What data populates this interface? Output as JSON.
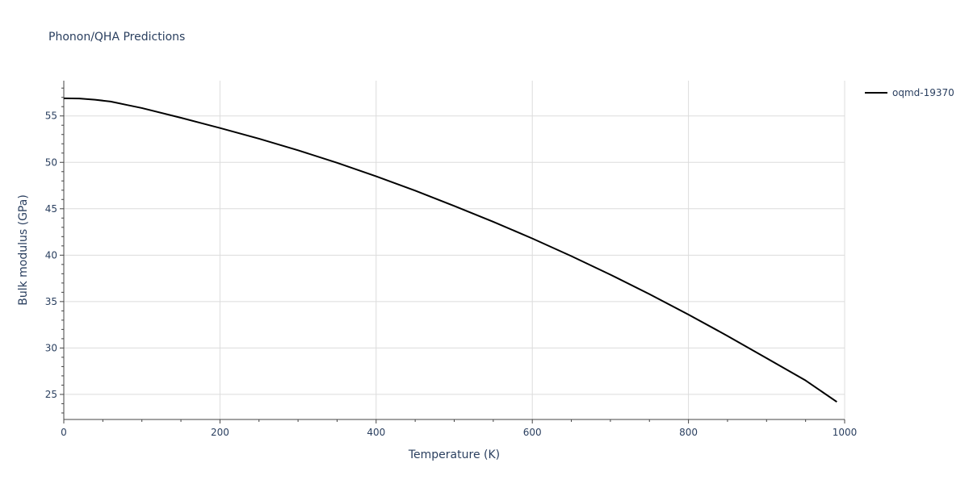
{
  "chart_data": {
    "type": "line",
    "title": "Phonon/QHA Predictions",
    "xlabel": "Temperature (K)",
    "ylabel": "Bulk modulus (GPa)",
    "xlim": [
      0,
      1000
    ],
    "ylim": [
      22.3,
      58.8
    ],
    "xticks": [
      0,
      200,
      400,
      600,
      800,
      1000
    ],
    "xtick_labels": [
      "0",
      "200",
      "400",
      "600",
      "800",
      "1000"
    ],
    "xminor_step": 50,
    "yticks": [
      25,
      30,
      35,
      40,
      45,
      50,
      55
    ],
    "ytick_labels": [
      "25",
      "30",
      "35",
      "40",
      "45",
      "50",
      "55"
    ],
    "yminor_step": 1,
    "grid": true,
    "legend_position": "top-right",
    "series": [
      {
        "name": "oqmd-19370",
        "color": "#000000",
        "x": [
          0,
          20,
          40,
          60,
          80,
          100,
          150,
          200,
          250,
          300,
          350,
          400,
          450,
          500,
          550,
          600,
          650,
          700,
          750,
          800,
          850,
          900,
          950,
          990
        ],
        "y": [
          56.9,
          56.88,
          56.75,
          56.55,
          56.2,
          55.85,
          54.8,
          53.7,
          52.55,
          51.3,
          49.95,
          48.5,
          46.95,
          45.3,
          43.6,
          41.8,
          39.9,
          37.9,
          35.8,
          33.6,
          31.3,
          28.9,
          26.5,
          24.2
        ]
      }
    ]
  }
}
